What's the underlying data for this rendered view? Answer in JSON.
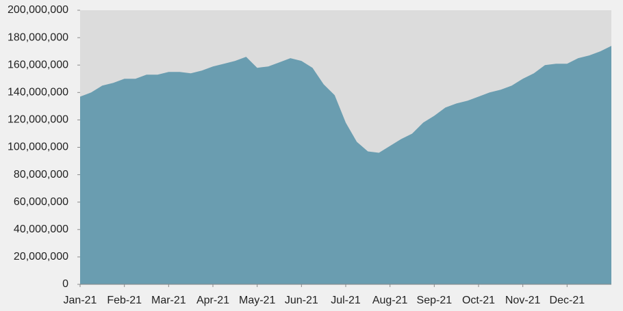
{
  "chart_data": {
    "type": "area",
    "categories": [
      "Jan-21",
      null,
      null,
      null,
      "Feb-21",
      null,
      null,
      null,
      "Mar-21",
      null,
      null,
      null,
      "Apr-21",
      null,
      null,
      null,
      "May-21",
      null,
      null,
      null,
      "Jun-21",
      null,
      null,
      null,
      "Jul-21",
      null,
      null,
      null,
      "Aug-21",
      null,
      null,
      null,
      "Sep-21",
      null,
      null,
      null,
      "Oct-21",
      null,
      null,
      null,
      "Nov-21",
      null,
      null,
      null,
      "Dec-21",
      null,
      null,
      null,
      null
    ],
    "values": [
      137000000,
      140000000,
      145000000,
      147000000,
      150000000,
      150000000,
      153000000,
      153000000,
      155000000,
      155000000,
      154000000,
      156000000,
      159000000,
      161000000,
      163000000,
      166000000,
      158000000,
      159000000,
      162000000,
      165000000,
      163000000,
      158000000,
      146000000,
      138000000,
      118000000,
      104000000,
      97000000,
      96000000,
      101000000,
      106000000,
      110000000,
      118000000,
      123000000,
      129000000,
      132000000,
      134000000,
      137000000,
      140000000,
      142000000,
      145000000,
      150000000,
      154000000,
      160000000,
      161000000,
      161000000,
      165000000,
      167000000,
      170000000,
      174000000
    ],
    "color": "#6a9db0",
    "plot_background": "#dcdcdc",
    "ylim": [
      0,
      200000000
    ],
    "yticks": [
      0,
      {
        "value": 20000000,
        "label": "20,000,000"
      },
      {
        "value": 40000000,
        "label": "40,000,000"
      },
      {
        "value": 60000000,
        "label": "60,000,000"
      },
      {
        "value": 80000000,
        "label": "80,000,000"
      },
      {
        "value": 100000000,
        "label": "100,000,000"
      },
      {
        "value": 120000000,
        "label": "120,000,000"
      },
      {
        "value": 140000000,
        "label": "140,000,000"
      },
      {
        "value": 160000000,
        "label": "160,000,000"
      },
      {
        "value": 180000000,
        "label": "180,000,000"
      },
      {
        "value": 200000000,
        "label": "200,000,000"
      }
    ]
  }
}
